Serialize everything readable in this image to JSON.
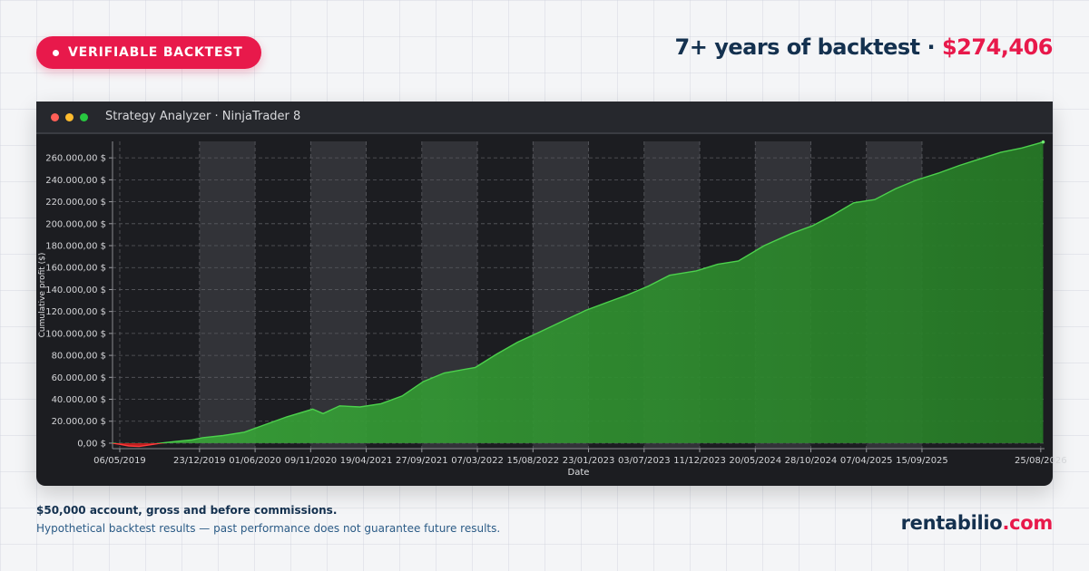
{
  "badge": {
    "label": "VERIFIABLE BACKTEST"
  },
  "headline": {
    "text": "7+ years of backtest ·",
    "amount": "$274,406"
  },
  "window": {
    "title": "Strategy Analyzer · NinjaTrader 8"
  },
  "footer": {
    "note": "$50,000 account, gross and before commissions.",
    "disclaimer": "Hypothetical backtest results — past performance does not guarantee future results."
  },
  "brand": {
    "name": "rentabilio",
    "tld": ".com"
  },
  "colors": {
    "accent": "#e8194b",
    "navy": "#14314f",
    "profit": "#2ea82e",
    "loss": "#cc1f1f",
    "plot_bg": "#1c1d21",
    "band": "#323338"
  },
  "chart_data": {
    "type": "area",
    "title": "",
    "xlabel": "Date",
    "ylabel": "Cumulative profit ($)",
    "ylim": [
      -5000,
      275000
    ],
    "yticks": [
      0,
      20000,
      40000,
      60000,
      80000,
      100000,
      120000,
      140000,
      160000,
      180000,
      200000,
      220000,
      240000,
      260000
    ],
    "ytick_labels": [
      "0,00 $",
      "20.000,00 $",
      "40.000,00 $",
      "60.000,00 $",
      "80.000,00 $",
      "100.000,00 $",
      "120.000,00 $",
      "140.000,00 $",
      "160.000,00 $",
      "180.000,00 $",
      "200.000,00 $",
      "220.000,00 $",
      "240.000,00 $",
      "260.000,00 $"
    ],
    "xlim": [
      "2019-04-15",
      "2026-09-05"
    ],
    "xticks": [
      "2019-05-06",
      "2019-12-23",
      "2020-06-01",
      "2020-11-09",
      "2021-04-19",
      "2021-09-27",
      "2022-03-07",
      "2022-08-15",
      "2023-01-23",
      "2023-07-03",
      "2023-12-11",
      "2024-05-20",
      "2024-10-28",
      "2025-04-07",
      "2025-09-15",
      "2026-08-25"
    ],
    "xtick_labels": [
      "06/05/2019",
      "23/12/2019",
      "01/06/2020",
      "09/11/2020",
      "19/04/2021",
      "27/09/2021",
      "07/03/2022",
      "15/08/2022",
      "23/01/2023",
      "03/07/2023",
      "11/12/2023",
      "20/05/2024",
      "28/10/2024",
      "07/04/2025",
      "15/09/2025",
      "25/08/2026"
    ],
    "grid": true,
    "legend": "none",
    "series": [
      {
        "x": [
          "2019-04-15",
          "2019-05-06",
          "2019-06-01",
          "2019-07-01",
          "2019-08-01",
          "2019-09-01",
          "2019-10-15",
          "2019-12-01",
          "2020-01-01",
          "2020-03-01",
          "2020-05-01",
          "2020-07-01",
          "2020-09-01",
          "2020-11-15",
          "2020-12-15",
          "2021-02-01",
          "2021-04-01",
          "2021-06-01",
          "2021-08-01",
          "2021-10-01",
          "2021-12-01",
          "2022-03-01",
          "2022-05-01",
          "2022-07-01",
          "2022-09-01",
          "2022-11-01",
          "2023-01-15",
          "2023-03-15",
          "2023-05-15",
          "2023-07-15",
          "2023-09-15",
          "2023-12-01",
          "2024-02-01",
          "2024-04-01",
          "2024-06-15",
          "2024-09-01",
          "2024-11-01",
          "2025-01-01",
          "2025-03-01",
          "2025-05-01",
          "2025-07-01",
          "2025-09-01",
          "2025-11-01",
          "2026-01-01",
          "2026-03-01",
          "2026-05-01",
          "2026-07-01",
          "2026-09-01"
        ],
        "y": [
          0,
          -1000,
          -2500,
          -3000,
          -1500,
          0,
          1500,
          3000,
          5000,
          7000,
          10000,
          17000,
          24000,
          31000,
          27000,
          34000,
          33000,
          36000,
          43000,
          56000,
          64000,
          69000,
          81000,
          92000,
          101000,
          110000,
          121000,
          128000,
          135000,
          143000,
          153000,
          157000,
          163000,
          166000,
          180000,
          191000,
          198000,
          208000,
          219000,
          222000,
          232000,
          240000,
          246000,
          253000,
          259000,
          265000,
          269000,
          274406
        ]
      }
    ]
  }
}
